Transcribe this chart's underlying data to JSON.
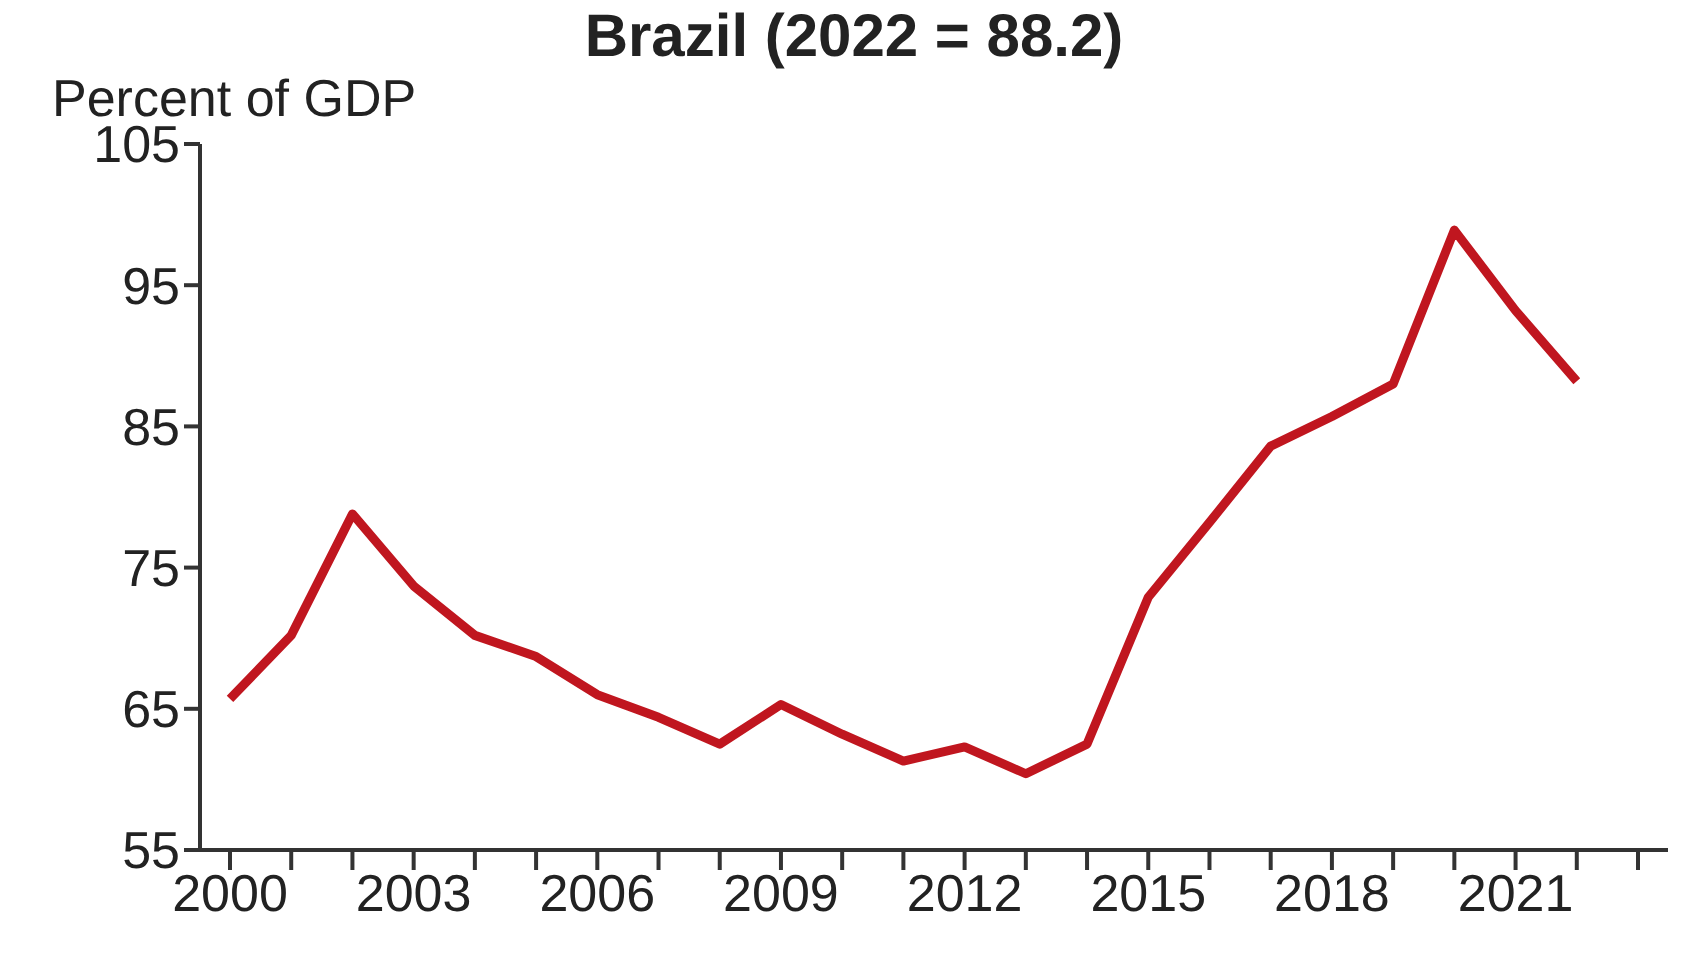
{
  "chart_data": {
    "type": "line",
    "title": "Brazil (2022 = 88.2)",
    "ylabel": "Percent of GDP",
    "categories": [
      "2000",
      null,
      null,
      "2003",
      null,
      null,
      "2006",
      null,
      null,
      "2009",
      null,
      null,
      "2012",
      null,
      null,
      "2015",
      null,
      null,
      "2018",
      null,
      null,
      "2021",
      null,
      null
    ],
    "series": [
      {
        "color": "#c0161f",
        "values": [
          65.7,
          70.2,
          78.8,
          73.7,
          70.2,
          68.7,
          66.0,
          64.4,
          62.5,
          65.3,
          63.2,
          61.3,
          62.3,
          60.4,
          62.5,
          72.9,
          78.2,
          83.6,
          85.7,
          88.0,
          98.9,
          93.2,
          88.2,
          null
        ]
      }
    ],
    "ylim": [
      55,
      105
    ],
    "yticks": [
      55,
      65,
      75,
      85,
      95,
      105
    ],
    "grid": false,
    "legend": false,
    "marker": "none",
    "line_style": "solid"
  }
}
